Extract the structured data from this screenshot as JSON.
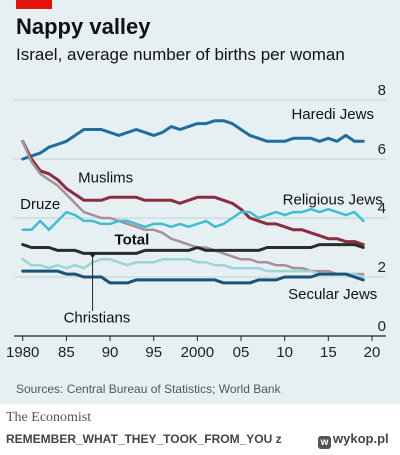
{
  "title": "Nappy valley",
  "subtitle": "Israel, average number of births per woman",
  "source": "Sources: Central Bureau of Statistics; World Bank",
  "brand": "The Economist",
  "credit": {
    "user": "REMEMBER_WHAT_THEY_TOOK_FROM_YOU",
    "conj": "z",
    "site": "wykop.pl",
    "icon": "wykop-logo-icon"
  },
  "colors": {
    "accent": "#e3120b",
    "background": "#e6eff2",
    "grid": "#b6c6cc",
    "text": "#121212"
  },
  "chart_data": {
    "type": "line",
    "xlim": [
      1979,
      2020
    ],
    "ylim": [
      0,
      8
    ],
    "x_ticks": [
      1980,
      1985,
      1990,
      1995,
      2000,
      2005,
      2010,
      2015,
      2020
    ],
    "x_tick_labels": [
      "1980",
      "85",
      "90",
      "95",
      "2000",
      "05",
      "10",
      "15",
      "20"
    ],
    "y_ticks": [
      0,
      2,
      4,
      6,
      8
    ],
    "y_tick_labels": [
      "0",
      "2",
      "4",
      "6",
      "8"
    ],
    "grid": true,
    "series": [
      {
        "name": "Haredi Jews",
        "color": "#1f6e9c",
        "width": 3,
        "x": [
          1980,
          1981,
          1982,
          1983,
          1984,
          1985,
          1986,
          1987,
          1988,
          1989,
          1990,
          1991,
          1992,
          1993,
          1994,
          1995,
          1996,
          1997,
          1998,
          1999,
          2000,
          2001,
          2002,
          2003,
          2004,
          2005,
          2006,
          2007,
          2008,
          2009,
          2010,
          2011,
          2012,
          2013,
          2014,
          2015,
          2016,
          2017,
          2018,
          2019
        ],
        "values": [
          6.0,
          6.1,
          6.2,
          6.4,
          6.5,
          6.6,
          6.8,
          7.0,
          7.0,
          7.0,
          6.9,
          6.8,
          6.9,
          7.0,
          6.9,
          6.8,
          6.9,
          7.1,
          7.0,
          7.1,
          7.2,
          7.2,
          7.3,
          7.3,
          7.2,
          7.0,
          6.8,
          6.7,
          6.6,
          6.6,
          6.6,
          6.7,
          6.7,
          6.7,
          6.6,
          6.7,
          6.6,
          6.8,
          6.6,
          6.6
        ]
      },
      {
        "name": "Muslims",
        "color": "#8c2c40",
        "width": 3,
        "x": [
          1980,
          1981,
          1982,
          1983,
          1984,
          1985,
          1986,
          1987,
          1988,
          1989,
          1990,
          1991,
          1992,
          1993,
          1994,
          1995,
          1996,
          1997,
          1998,
          1999,
          2000,
          2001,
          2002,
          2003,
          2004,
          2005,
          2006,
          2007,
          2008,
          2009,
          2010,
          2011,
          2012,
          2013,
          2014,
          2015,
          2016,
          2017,
          2018,
          2019
        ],
        "values": [
          6.6,
          6.0,
          5.6,
          5.5,
          5.3,
          5.0,
          4.8,
          4.6,
          4.6,
          4.6,
          4.7,
          4.7,
          4.7,
          4.7,
          4.6,
          4.6,
          4.6,
          4.6,
          4.5,
          4.6,
          4.7,
          4.7,
          4.7,
          4.6,
          4.5,
          4.3,
          4.0,
          3.9,
          3.8,
          3.8,
          3.7,
          3.6,
          3.6,
          3.5,
          3.4,
          3.3,
          3.3,
          3.2,
          3.2,
          3.1
        ]
      },
      {
        "name": "Druze",
        "color": "#a8909a",
        "width": 2.5,
        "x": [
          1980,
          1981,
          1982,
          1983,
          1984,
          1985,
          1986,
          1987,
          1988,
          1989,
          1990,
          1991,
          1992,
          1993,
          1994,
          1995,
          1996,
          1997,
          1998,
          1999,
          2000,
          2001,
          2002,
          2003,
          2004,
          2005,
          2006,
          2007,
          2008,
          2009,
          2010,
          2011,
          2012,
          2013,
          2014,
          2015,
          2016,
          2017,
          2018,
          2019
        ],
        "values": [
          6.6,
          5.9,
          5.5,
          5.3,
          5.1,
          4.8,
          4.5,
          4.2,
          4.1,
          4.0,
          4.0,
          3.9,
          3.8,
          3.7,
          3.6,
          3.6,
          3.5,
          3.3,
          3.2,
          3.1,
          3.0,
          3.0,
          2.9,
          2.8,
          2.7,
          2.6,
          2.6,
          2.5,
          2.5,
          2.4,
          2.4,
          2.3,
          2.3,
          2.2,
          2.2,
          2.2,
          2.1,
          2.1,
          2.1,
          2.1
        ]
      },
      {
        "name": "Religious Jews",
        "color": "#3ebfcf",
        "width": 2.5,
        "x": [
          1980,
          1981,
          1982,
          1983,
          1984,
          1985,
          1986,
          1987,
          1988,
          1989,
          1990,
          1991,
          1992,
          1993,
          1994,
          1995,
          1996,
          1997,
          1998,
          1999,
          2000,
          2001,
          2002,
          2003,
          2004,
          2005,
          2006,
          2007,
          2008,
          2009,
          2010,
          2011,
          2012,
          2013,
          2014,
          2015,
          2016,
          2017,
          2018,
          2019
        ],
        "values": [
          3.6,
          3.6,
          3.9,
          3.6,
          3.9,
          4.2,
          4.1,
          3.9,
          3.9,
          3.8,
          3.8,
          3.9,
          3.9,
          3.8,
          3.7,
          3.8,
          3.8,
          3.7,
          3.8,
          3.7,
          3.8,
          3.9,
          3.7,
          3.8,
          4.0,
          4.2,
          4.2,
          4.0,
          4.1,
          4.2,
          4.1,
          4.2,
          4.2,
          4.3,
          4.2,
          4.3,
          4.2,
          4.1,
          4.2,
          3.9
        ]
      },
      {
        "name": "Total",
        "color": "#2b2b2b",
        "width": 3,
        "x": [
          1980,
          1981,
          1982,
          1983,
          1984,
          1985,
          1986,
          1987,
          1988,
          1989,
          1990,
          1991,
          1992,
          1993,
          1994,
          1995,
          1996,
          1997,
          1998,
          1999,
          2000,
          2001,
          2002,
          2003,
          2004,
          2005,
          2006,
          2007,
          2008,
          2009,
          2010,
          2011,
          2012,
          2013,
          2014,
          2015,
          2016,
          2017,
          2018,
          2019
        ],
        "values": [
          3.1,
          3.0,
          3.0,
          3.0,
          2.9,
          2.9,
          2.9,
          2.8,
          2.8,
          2.8,
          2.8,
          2.8,
          2.8,
          2.8,
          2.9,
          2.9,
          2.9,
          2.9,
          2.9,
          2.9,
          3.0,
          2.9,
          2.9,
          2.9,
          2.9,
          2.9,
          2.9,
          2.9,
          3.0,
          3.0,
          3.0,
          3.0,
          3.0,
          3.0,
          3.1,
          3.1,
          3.1,
          3.1,
          3.1,
          3.0
        ]
      },
      {
        "name": "Christians",
        "color": "#9ad6d8",
        "width": 2.5,
        "x": [
          1980,
          1981,
          1982,
          1983,
          1984,
          1985,
          1986,
          1987,
          1988,
          1989,
          1990,
          1991,
          1992,
          1993,
          1994,
          1995,
          1996,
          1997,
          1998,
          1999,
          2000,
          2001,
          2002,
          2003,
          2004,
          2005,
          2006,
          2007,
          2008,
          2009,
          2010,
          2011,
          2012,
          2013,
          2014,
          2015,
          2016,
          2017,
          2018,
          2019
        ],
        "values": [
          2.6,
          2.4,
          2.4,
          2.3,
          2.4,
          2.3,
          2.4,
          2.3,
          2.5,
          2.6,
          2.6,
          2.5,
          2.4,
          2.5,
          2.5,
          2.5,
          2.6,
          2.6,
          2.6,
          2.6,
          2.5,
          2.5,
          2.4,
          2.4,
          2.3,
          2.3,
          2.3,
          2.3,
          2.2,
          2.2,
          2.2,
          2.2,
          2.2,
          2.2,
          2.1,
          2.1,
          2.1,
          2.1,
          2.1,
          2.0
        ]
      },
      {
        "name": "Secular Jews",
        "color": "#17537a",
        "width": 3,
        "x": [
          1980,
          1981,
          1982,
          1983,
          1984,
          1985,
          1986,
          1987,
          1988,
          1989,
          1990,
          1991,
          1992,
          1993,
          1994,
          1995,
          1996,
          1997,
          1998,
          1999,
          2000,
          2001,
          2002,
          2003,
          2004,
          2005,
          2006,
          2007,
          2008,
          2009,
          2010,
          2011,
          2012,
          2013,
          2014,
          2015,
          2016,
          2017,
          2018,
          2019
        ],
        "values": [
          2.2,
          2.2,
          2.2,
          2.2,
          2.2,
          2.1,
          2.1,
          2.0,
          2.0,
          2.0,
          1.8,
          1.8,
          1.8,
          1.9,
          1.9,
          1.9,
          1.9,
          1.9,
          1.9,
          1.9,
          1.9,
          1.9,
          1.9,
          1.8,
          1.8,
          1.8,
          1.8,
          1.9,
          1.9,
          1.9,
          2.0,
          2.0,
          2.0,
          2.0,
          2.1,
          2.1,
          2.1,
          2.1,
          2.0,
          1.9
        ]
      }
    ],
    "labels": [
      {
        "text": "Haredi Jews",
        "bold": false,
        "x": 2015.5,
        "y": 7.35
      },
      {
        "text": "Muslims",
        "bold": false,
        "x": 1989.5,
        "y": 5.2
      },
      {
        "text": "Druze",
        "bold": false,
        "x": 1982,
        "y": 4.3
      },
      {
        "text": "Religious Jews",
        "bold": false,
        "x": 2015.5,
        "y": 4.45
      },
      {
        "text": "Total",
        "bold": true,
        "x": 1992.5,
        "y": 3.1
      },
      {
        "text": "Secular Jews",
        "bold": false,
        "x": 2015.5,
        "y": 1.25
      },
      {
        "text": "Christians",
        "bold": false,
        "x": 1988.5,
        "y": 0.45
      }
    ],
    "leader": {
      "from": [
        1988,
        2.75
      ],
      "to": [
        1988,
        0.85
      ]
    }
  }
}
